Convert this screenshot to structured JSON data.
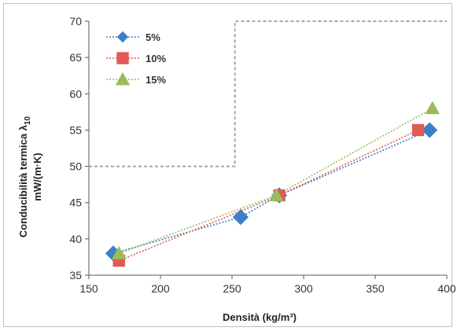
{
  "chart_data": {
    "type": "line",
    "xlabel": "Densità (kg/m³)",
    "ylabel_line1": "Conducibilità termica λ",
    "ylabel_subscript": "10",
    "ylabel_line2": "mW/(m·K)",
    "xlim": [
      150,
      400
    ],
    "ylim": [
      35,
      70
    ],
    "xticks": [
      150,
      200,
      250,
      300,
      350,
      400
    ],
    "yticks": [
      35,
      40,
      45,
      50,
      55,
      60,
      65,
      70
    ],
    "legend_position": "top-left",
    "grid": false,
    "series": [
      {
        "name": "5%",
        "color": "#3c7fc9",
        "marker": "diamond",
        "points": [
          [
            167,
            38
          ],
          [
            256,
            43
          ],
          [
            283,
            46
          ],
          [
            388,
            55
          ]
        ]
      },
      {
        "name": "10%",
        "color": "#e05a56",
        "marker": "square",
        "points": [
          [
            171,
            37
          ],
          [
            283,
            46
          ],
          [
            380,
            55
          ]
        ]
      },
      {
        "name": "15%",
        "color": "#9bbb59",
        "marker": "triangle",
        "points": [
          [
            171,
            38
          ],
          [
            281,
            46
          ],
          [
            390,
            58
          ]
        ]
      }
    ],
    "reference_region": {
      "x_from": 252,
      "y_threshold": 50,
      "y_top": 70,
      "color": "#a6a6a6"
    }
  }
}
